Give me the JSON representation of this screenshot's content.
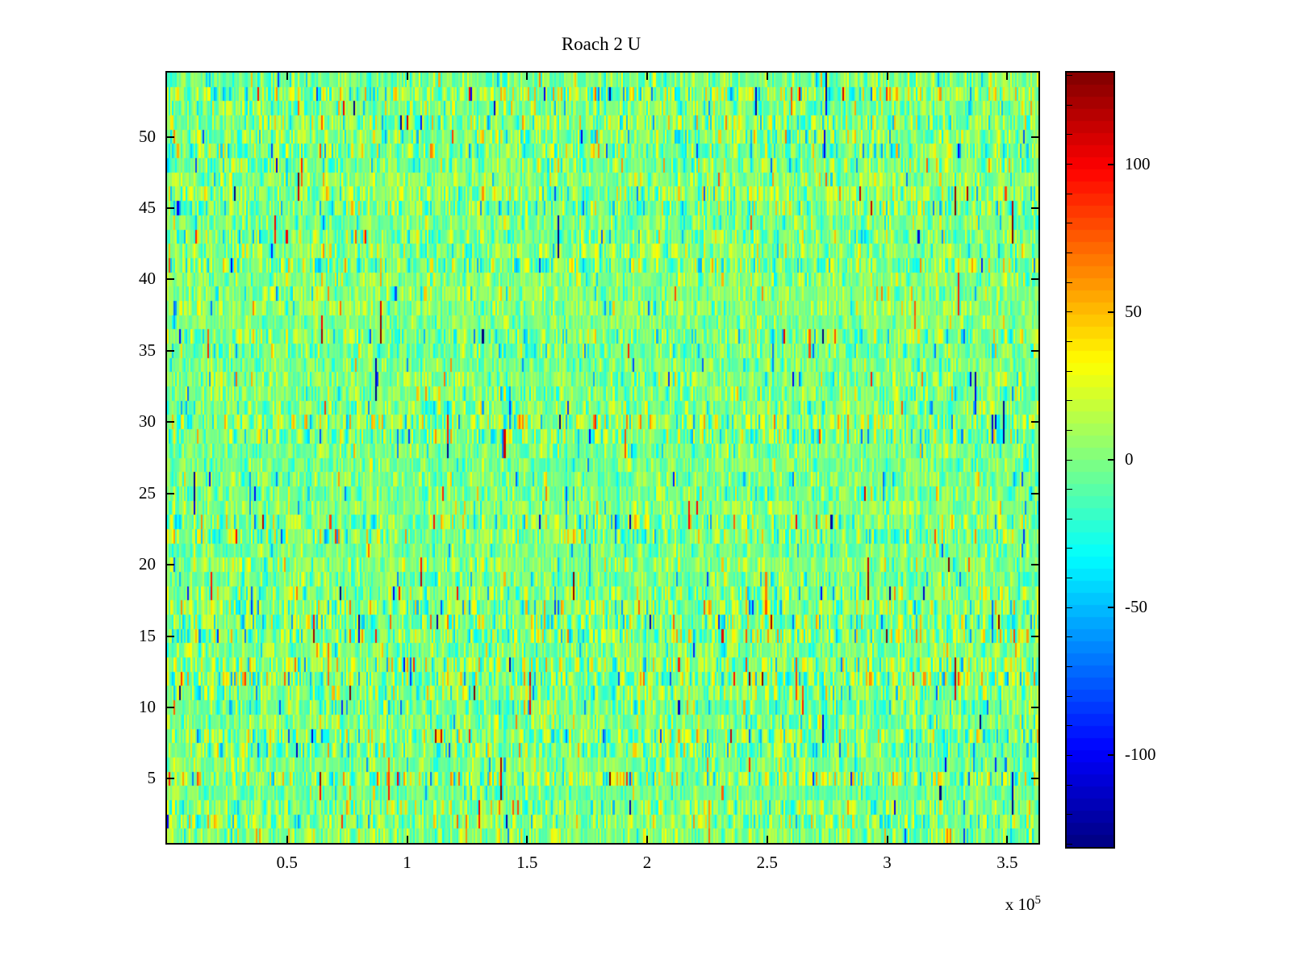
{
  "figure": {
    "background_color": "#ffffff",
    "axis_color": "#000000"
  },
  "chart_data": {
    "type": "heatmap",
    "title": "Roach 2 U",
    "xlabel": "",
    "ylabel": "",
    "xlim": [
      0,
      363000
    ],
    "ylim": [
      0.5,
      54.5
    ],
    "x_ticks": [
      50000,
      100000,
      150000,
      200000,
      250000,
      300000,
      350000
    ],
    "x_tick_labels": [
      "0.5",
      "1",
      "1.5",
      "2",
      "2.5",
      "3",
      "3.5"
    ],
    "x_axis_multiplier": {
      "base": "x 10",
      "exponent": "5"
    },
    "y_ticks": [
      5,
      10,
      15,
      20,
      25,
      30,
      35,
      40,
      45,
      50
    ],
    "y_tick_labels": [
      "5",
      "10",
      "15",
      "20",
      "25",
      "30",
      "35",
      "40",
      "45",
      "50"
    ],
    "rows": 54,
    "cols": 520,
    "colormap": "jet",
    "clim": [
      -131,
      131
    ],
    "grid": false,
    "colorbar": {
      "position": "right",
      "tick_values": [
        -100,
        -50,
        0,
        50,
        100
      ],
      "tick_labels": [
        "-100",
        "-50",
        "0",
        "50",
        "100"
      ],
      "minor_tick_step": 10,
      "segments": 64
    },
    "data_summary": {
      "distribution": "zero-mean random noise per (row, column) cell",
      "mean": 0,
      "std": 16,
      "heavy_tail_probability": 0.06,
      "heavy_tail_multiplier": 2.2,
      "spike_probability": 0.004,
      "spike_magnitude_range": [
        60,
        131
      ],
      "spike_vertical_run_max": 3,
      "seed": 1337
    }
  }
}
